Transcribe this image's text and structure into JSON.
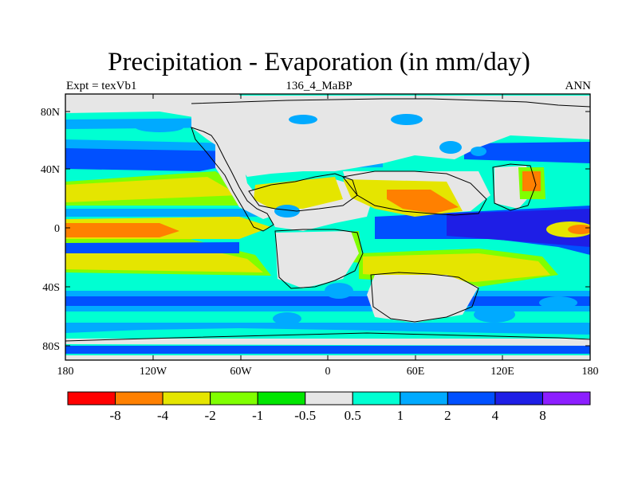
{
  "title": "Precipitation - Evaporation (in mm/day)",
  "subtitle_left": "Expt = texVb1",
  "subtitle_center": "136_4_MaBP",
  "subtitle_right": "ANN",
  "lat_ticks": [
    "80N",
    "40N",
    "0",
    "40S",
    "80S"
  ],
  "lon_ticks": [
    "180",
    "120W",
    "60W",
    "0",
    "60E",
    "120E",
    "180"
  ],
  "colors": {
    "red": "#ff0000",
    "orange": "#ff8000",
    "yellow": "#e5e500",
    "lightgreen": "#80ff00",
    "green": "#00e600",
    "gray": "#e6e6e6",
    "cyan": "#00ffd2",
    "lightblue": "#00aaff",
    "blue": "#0050ff",
    "darkblue": "#1e1ee6",
    "purple": "#8c1eff"
  },
  "colorbar": {
    "colors": [
      "#ff0000",
      "#ff8000",
      "#e5e500",
      "#80ff00",
      "#00e600",
      "#e6e6e6",
      "#00ffd2",
      "#00aaff",
      "#0050ff",
      "#1e1ee6",
      "#8c1eff"
    ],
    "labels": [
      "-8",
      "-4",
      "-2",
      "-1",
      "-0.5",
      "0.5",
      "1",
      "2",
      "4",
      "8"
    ]
  }
}
